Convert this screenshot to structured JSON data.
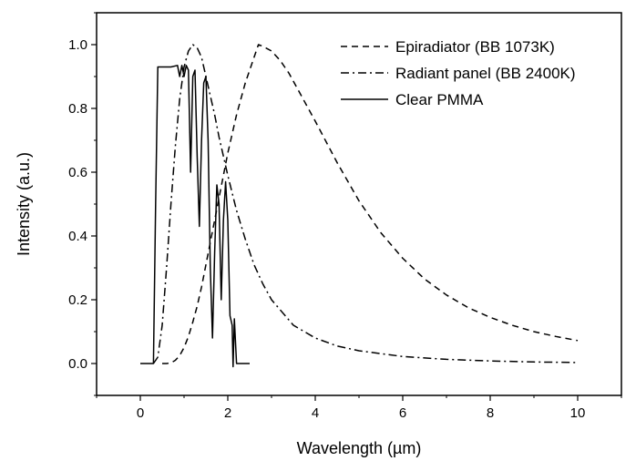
{
  "chart_data": {
    "type": "line",
    "xlabel": "Wavelength (µm)",
    "ylabel": "Intensity (a.u.)",
    "xlim": [
      -1,
      11
    ],
    "ylim": [
      -0.1,
      1.1
    ],
    "xticks": [
      0,
      2,
      4,
      6,
      8,
      10
    ],
    "yticks": [
      0.0,
      0.2,
      0.4,
      0.6,
      0.8,
      1.0
    ],
    "xtick_labels": [
      "0",
      "2",
      "4",
      "6",
      "8",
      "10"
    ],
    "ytick_labels": [
      "0.0",
      "0.2",
      "0.4",
      "0.6",
      "0.8",
      "1.0"
    ],
    "grid": false,
    "legend_position": "top-right",
    "series": [
      {
        "name": "Epiradiator (BB 1073K)",
        "line_style": "dashed",
        "color": "#000000",
        "x": [
          0.5,
          0.6,
          0.7,
          0.8,
          0.9,
          1.0,
          1.1,
          1.2,
          1.3,
          1.4,
          1.5,
          1.6,
          1.7,
          1.8,
          1.9,
          2.0,
          2.2,
          2.4,
          2.6,
          2.7,
          2.8,
          3.0,
          3.2,
          3.4,
          3.6,
          3.8,
          4.0,
          4.5,
          5.0,
          5.5,
          6.0,
          6.5,
          7.0,
          7.5,
          8.0,
          8.5,
          9.0,
          9.5,
          10.0
        ],
        "y": [
          0.0,
          0.0,
          0.002,
          0.01,
          0.025,
          0.05,
          0.085,
          0.13,
          0.18,
          0.24,
          0.31,
          0.38,
          0.45,
          0.52,
          0.59,
          0.66,
          0.78,
          0.88,
          0.96,
          1.0,
          0.995,
          0.98,
          0.95,
          0.91,
          0.86,
          0.81,
          0.76,
          0.63,
          0.51,
          0.41,
          0.33,
          0.265,
          0.215,
          0.175,
          0.145,
          0.12,
          0.1,
          0.085,
          0.072
        ]
      },
      {
        "name": "Radiant panel (BB 2400K)",
        "line_style": "dashdot",
        "color": "#000000",
        "x": [
          0.3,
          0.4,
          0.5,
          0.6,
          0.7,
          0.8,
          0.9,
          1.0,
          1.1,
          1.2,
          1.3,
          1.4,
          1.5,
          1.6,
          1.7,
          1.8,
          2.0,
          2.2,
          2.4,
          2.6,
          2.8,
          3.0,
          3.5,
          4.0,
          4.5,
          5.0,
          6.0,
          7.0,
          8.0,
          9.0,
          10.0
        ],
        "y": [
          0.0,
          0.02,
          0.12,
          0.3,
          0.5,
          0.68,
          0.83,
          0.93,
          0.98,
          1.0,
          0.99,
          0.96,
          0.9,
          0.84,
          0.78,
          0.71,
          0.59,
          0.48,
          0.39,
          0.31,
          0.25,
          0.2,
          0.12,
          0.08,
          0.055,
          0.04,
          0.022,
          0.013,
          0.008,
          0.005,
          0.003
        ]
      },
      {
        "name": "Clear PMMA",
        "line_style": "solid",
        "color": "#000000",
        "x": [
          0.0,
          0.3,
          0.35,
          0.4,
          0.5,
          0.7,
          0.85,
          0.9,
          0.95,
          1.0,
          1.05,
          1.1,
          1.15,
          1.2,
          1.25,
          1.3,
          1.35,
          1.4,
          1.45,
          1.5,
          1.55,
          1.6,
          1.65,
          1.7,
          1.75,
          1.8,
          1.85,
          1.9,
          1.95,
          2.0,
          2.05,
          2.1,
          2.12,
          2.15,
          2.2,
          2.3,
          2.5
        ],
        "y": [
          0.0,
          0.0,
          0.5,
          0.93,
          0.93,
          0.93,
          0.935,
          0.9,
          0.935,
          0.9,
          0.935,
          0.92,
          0.6,
          0.9,
          0.92,
          0.65,
          0.43,
          0.7,
          0.88,
          0.9,
          0.7,
          0.3,
          0.08,
          0.35,
          0.56,
          0.5,
          0.2,
          0.45,
          0.57,
          0.45,
          0.15,
          0.12,
          -0.01,
          0.14,
          0.0,
          0.0,
          0.0
        ]
      }
    ]
  }
}
